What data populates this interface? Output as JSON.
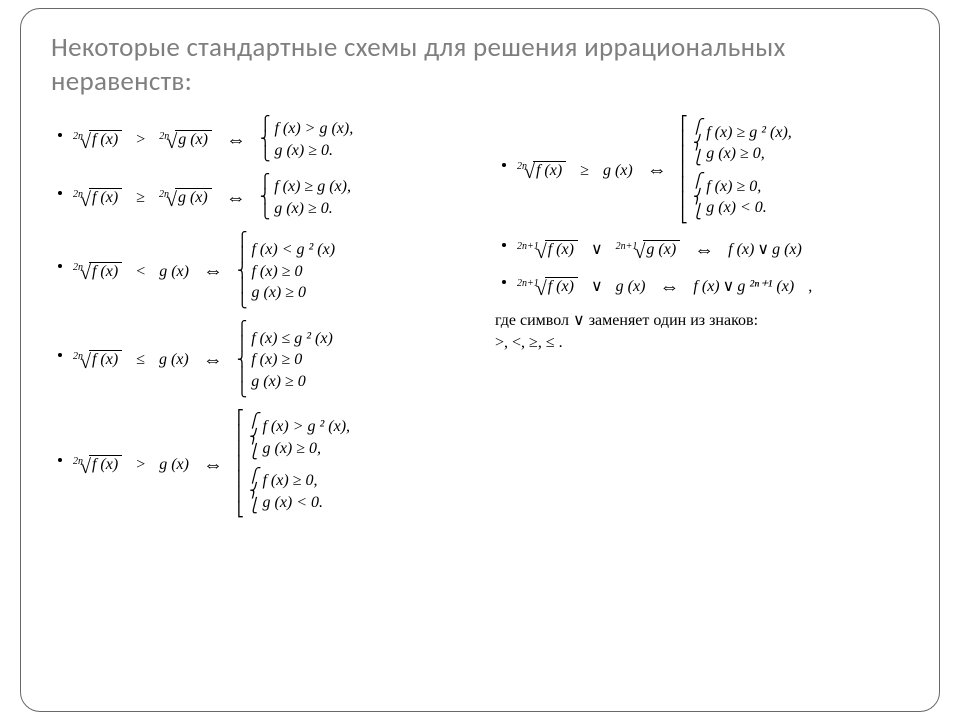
{
  "title": "Некоторые стандартные схемы для решения иррациональных неравенств:",
  "fx": "f (x)",
  "gx": "g (x)",
  "idx": {
    "2n": "2n",
    "2n1": "2n+1"
  },
  "ops": {
    "gt": ">",
    "ge": "≥",
    "lt": "<",
    "le": "≤",
    "iff": "⇔",
    "vee": "∨"
  },
  "left": [
    {
      "rows": [
        "f (x) > g (x),",
        "g (x) ≥ 0."
      ]
    },
    {
      "rows": [
        "f (x) ≥ g (x),",
        "g (x) ≥ 0."
      ]
    },
    {
      "rows": [
        "f (x) < g ² (x)",
        "f (x) ≥ 0",
        "g (x) ≥ 0"
      ]
    },
    {
      "rows": [
        "f (x) ≤ g ² (x)",
        "f (x) ≥ 0",
        "g (x) ≥ 0"
      ]
    },
    {
      "group1": [
        "f (x) > g ² (x),",
        "g (x) ≥ 0,"
      ],
      "group2": [
        "f (x) ≥ 0,",
        "g (x) < 0."
      ]
    }
  ],
  "right": [
    {
      "group1": [
        "f (x) ≥ g ² (x),",
        "g (x) ≥ 0,"
      ],
      "group2": [
        "f (x) ≥ 0,",
        "g (x) < 0."
      ]
    },
    {},
    {
      "rhs": "g ²ⁿ⁺¹ (x)"
    }
  ],
  "note": {
    "line1": "где символ ∨ заменяет один из знаков:",
    "line2": ">, <, ≥, ≤ ."
  }
}
